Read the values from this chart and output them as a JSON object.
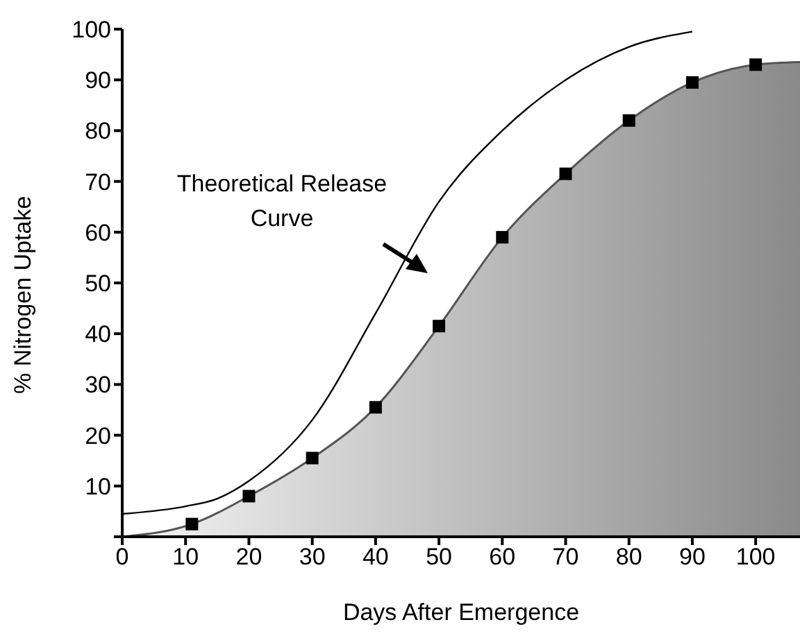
{
  "chart_data": {
    "type": "area",
    "xlabel": "Days After Emergence",
    "ylabel": "% Nitrogen Uptake",
    "annotations": [
      "Theoretical Release Curve"
    ],
    "xlim": [
      0,
      107
    ],
    "xticks": [
      0,
      10,
      20,
      30,
      40,
      50,
      60,
      70,
      80,
      90,
      100
    ],
    "ylim": [
      0,
      100
    ],
    "yticks": [
      {
        "value": 0,
        "label": null
      },
      10,
      20,
      30,
      40,
      50,
      60,
      70,
      80,
      90,
      100
    ],
    "series": [
      {
        "color": "#8a8a8a",
        "marker": "none",
        "x": [
          0,
          11,
          20,
          30,
          40,
          50,
          60,
          70,
          80,
          90,
          100,
          107
        ],
        "values": [
          0,
          2.5,
          8,
          15.5,
          25.5,
          41.5,
          59,
          71.5,
          82,
          89.5,
          93,
          93.5
        ]
      },
      {
        "type": "scatter",
        "color": "#000000",
        "marker": "square",
        "x": [
          11,
          20,
          30,
          40,
          50,
          60,
          70,
          80,
          90,
          100
        ],
        "values": [
          2.5,
          8,
          15.5,
          25.5,
          41.5,
          59,
          71.5,
          82,
          89.5,
          93
        ]
      },
      {
        "type": "line",
        "color": "#000000",
        "marker": "none",
        "line_style": "solid",
        "x": [
          0,
          10,
          15,
          20,
          30,
          40,
          50,
          60,
          70,
          80,
          90
        ],
        "values": [
          4.5,
          6,
          7.5,
          11,
          23,
          44,
          66,
          80,
          90,
          96.5,
          99.5
        ]
      }
    ]
  }
}
